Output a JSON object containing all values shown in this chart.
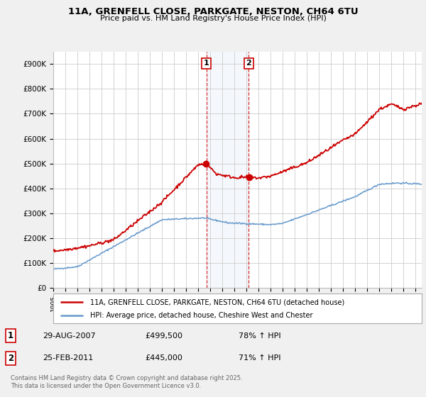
{
  "title": "11A, GRENFELL CLOSE, PARKGATE, NESTON, CH64 6TU",
  "subtitle": "Price paid vs. HM Land Registry's House Price Index (HPI)",
  "ylim": [
    0,
    950000
  ],
  "yticks": [
    0,
    100000,
    200000,
    300000,
    400000,
    500000,
    600000,
    700000,
    800000,
    900000
  ],
  "ytick_labels": [
    "£0",
    "£100K",
    "£200K",
    "£300K",
    "£400K",
    "£500K",
    "£600K",
    "£700K",
    "£800K",
    "£900K"
  ],
  "house_color": "#cc0000",
  "hpi_color": "#6699cc",
  "legend_house": "11A, GRENFELL CLOSE, PARKGATE, NESTON, CH64 6TU (detached house)",
  "legend_hpi": "HPI: Average price, detached house, Cheshire West and Chester",
  "t1": 2007.67,
  "t2": 2011.17,
  "transaction1": "29-AUG-2007",
  "transaction1_price": "£499,500",
  "transaction1_hpi": "78% ↑ HPI",
  "transaction2": "25-FEB-2011",
  "transaction2_price": "£445,000",
  "transaction2_hpi": "71% ↑ HPI",
  "footer": "Contains HM Land Registry data © Crown copyright and database right 2025.\nThis data is licensed under the Open Government Licence v3.0.",
  "bg_color": "#f0f0f0",
  "plot_bg": "#ffffff",
  "grid_color": "#cccccc",
  "t1_house_val": 499500,
  "t2_house_val": 445000
}
